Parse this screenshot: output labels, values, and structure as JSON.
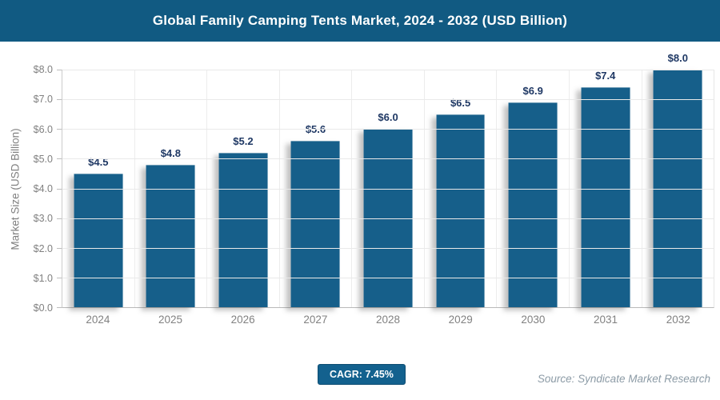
{
  "header": {
    "title": "Global Family Camping Tents Market, 2024 - 2032 (USD Billion)"
  },
  "chart_data": {
    "type": "bar",
    "title": "Global Family Camping Tents Market, 2024 - 2032 (USD Billion)",
    "categories": [
      "2024",
      "2025",
      "2026",
      "2027",
      "2028",
      "2029",
      "2030",
      "2031",
      "2032"
    ],
    "values": [
      4.5,
      4.8,
      5.2,
      5.6,
      6.0,
      6.5,
      6.9,
      7.4,
      8.0
    ],
    "value_labels": [
      "$4.5",
      "$4.8",
      "$5.2",
      "$5.6",
      "$6.0",
      "$6.5",
      "$6.9",
      "$7.4",
      "$8.0"
    ],
    "xlabel": "",
    "ylabel": "Market Size (USD Billion)",
    "ylim": [
      0,
      8
    ],
    "yticks": [
      "$0.0",
      "$1.0",
      "$2.0",
      "$3.0",
      "$4.0",
      "$5.0",
      "$6.0",
      "$7.0",
      "$8.0"
    ],
    "grid": true,
    "legend_position": "none",
    "bar_color": "#165f8a",
    "value_label_color": "#1f3864",
    "axis_label_color": "#808080"
  },
  "footer": {
    "cagr_label": "CAGR: 7.45%",
    "source": "Source: Syndicate Market Research"
  },
  "colors": {
    "header_background": "#115a82",
    "header_text": "#ffffff",
    "badge_background": "#13618e",
    "source_text": "#8c9ba6",
    "gridline": "#e9e9e9"
  }
}
